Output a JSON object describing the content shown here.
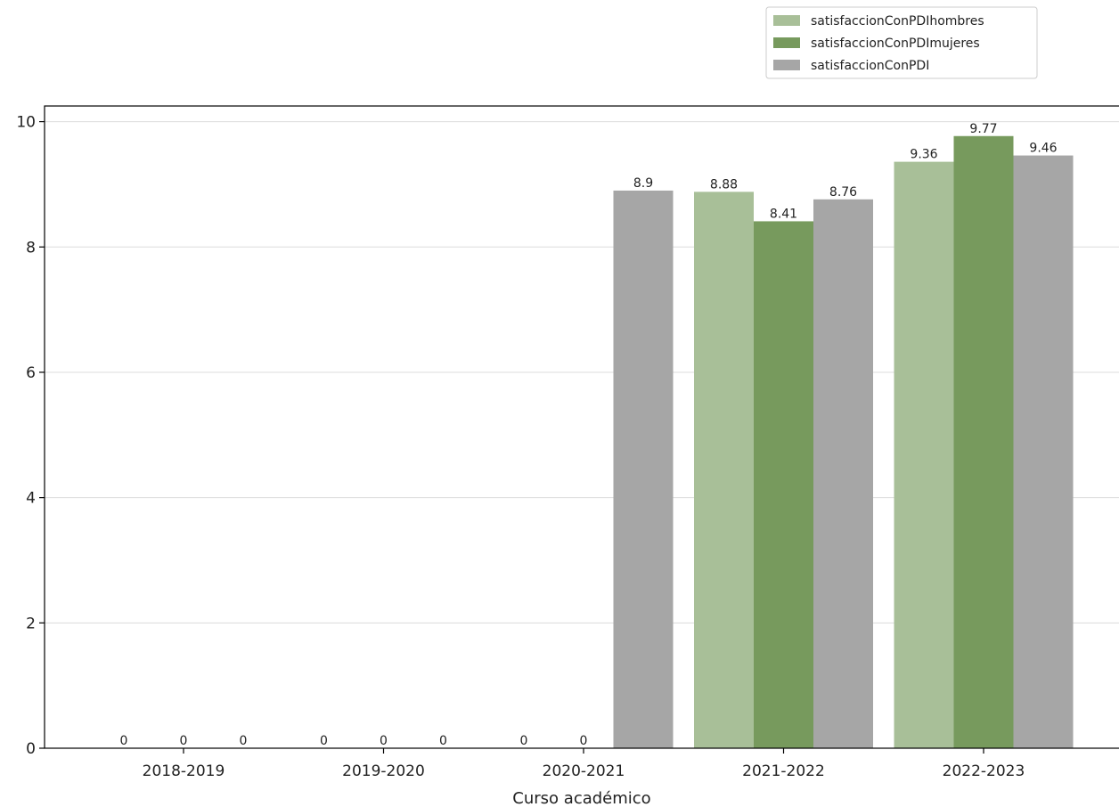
{
  "chart_data": {
    "type": "bar",
    "categories": [
      "2018-2019",
      "2019-2020",
      "2020-2021",
      "2021-2022",
      "2022-2023"
    ],
    "series": [
      {
        "name": "satisfaccionConPDIhombres",
        "color": "#a8bf98",
        "values": [
          0,
          0,
          0,
          8.88,
          9.36
        ]
      },
      {
        "name": "satisfaccionConPDImujeres",
        "color": "#779a5d",
        "values": [
          0,
          0,
          0,
          8.41,
          9.77
        ]
      },
      {
        "name": "satisfaccionConPDI",
        "color": "#a6a6a6",
        "values": [
          0,
          0,
          8.9,
          8.76,
          9.46
        ]
      }
    ],
    "data_labels": [
      [
        "0",
        "0",
        "0",
        "8.88",
        "9.36"
      ],
      [
        "0",
        "0",
        "0",
        "8.41",
        "9.77"
      ],
      [
        "0",
        "0",
        "8.9",
        "8.76",
        "9.46"
      ]
    ],
    "xlabel": "Curso académico",
    "ylabel": "",
    "ylim": [
      0,
      10.25
    ],
    "yticks": [
      0,
      2,
      4,
      6,
      8,
      10
    ],
    "grid": "horizontal",
    "legend_position": "top-right"
  }
}
